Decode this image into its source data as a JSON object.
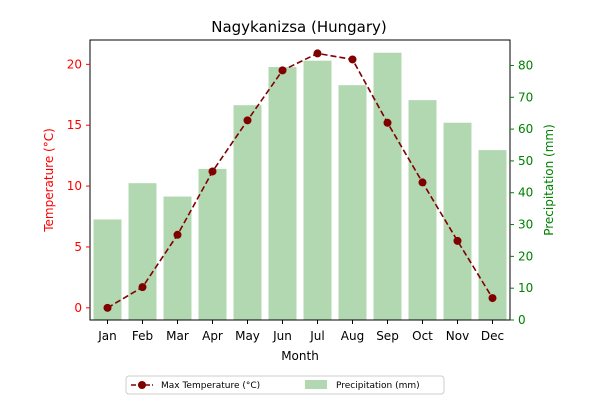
{
  "chart_data": {
    "type": "bar",
    "title": "Nagykanizsa (Hungary)",
    "xlabel": "Month",
    "ylabel_left": "Temperature (°C)",
    "ylabel_right": "Precipitation (mm)",
    "categories": [
      "Jan",
      "Feb",
      "Mar",
      "Apr",
      "May",
      "Jun",
      "Jul",
      "Aug",
      "Sep",
      "Oct",
      "Nov",
      "Dec"
    ],
    "series": [
      {
        "name": "Max Temperature (°C)",
        "type": "line",
        "axis": "left",
        "color": "#800000",
        "values": [
          0.0,
          1.7,
          6.0,
          11.2,
          15.4,
          19.5,
          20.9,
          20.4,
          15.2,
          10.3,
          5.5,
          0.8
        ]
      },
      {
        "name": "Precipitation (mm)",
        "type": "bar",
        "axis": "right",
        "color": "#b2d8b2",
        "values": [
          31.6,
          43.0,
          38.8,
          47.5,
          67.5,
          79.5,
          81.5,
          73.8,
          84.0,
          69.1,
          62.0,
          53.4
        ]
      }
    ],
    "ylim_left": [
      -1.0,
      22.0
    ],
    "ylim_right": [
      0,
      88.0
    ],
    "yticks_left": [
      "0",
      "5",
      "10",
      "15",
      "20"
    ],
    "yticks_right": [
      "0",
      "10",
      "20",
      "30",
      "40",
      "50",
      "60",
      "70",
      "80"
    ],
    "left_axis_color": "#ff0000",
    "right_axis_color": "#008000",
    "grid": false,
    "legend_position": "bottom-center"
  }
}
